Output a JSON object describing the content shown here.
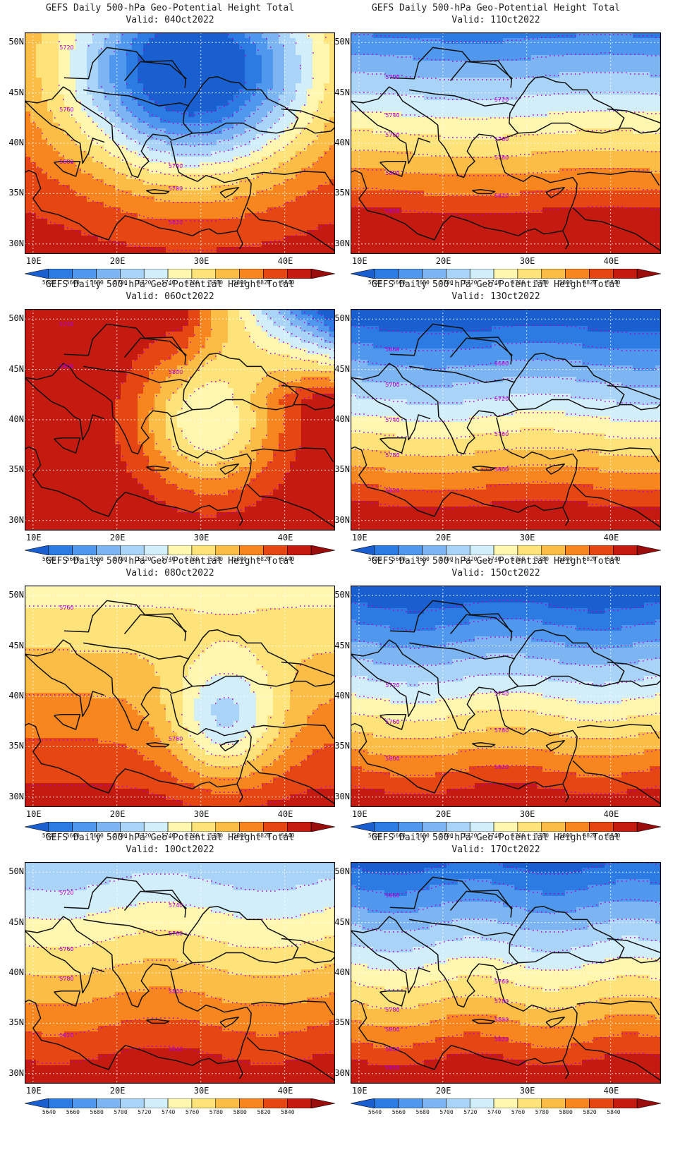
{
  "map_title": "GEFS Daily 500-hPa Geo-Potential Height Total",
  "x_ticks": [
    "10E",
    "20E",
    "30E",
    "40E"
  ],
  "y_ticks": [
    "50N",
    "45N",
    "40N",
    "35N",
    "30N"
  ],
  "colorbar": {
    "levels": [
      "5640",
      "5660",
      "5680",
      "5700",
      "5720",
      "5740",
      "5760",
      "5780",
      "5800",
      "5820",
      "5840"
    ],
    "colors": [
      "#1a5fd0",
      "#2b7be3",
      "#4f98ee",
      "#7db5f2",
      "#a9d3f7",
      "#d2eefb",
      "#fff7b0",
      "#fde37a",
      "#fbbd45",
      "#f7861f",
      "#e64612",
      "#c41a10",
      "#990d0d"
    ]
  },
  "contour_color": "#b000d0",
  "land_outline_color": "#111111",
  "panels": [
    {
      "valid": "Valid: 04Oct2022",
      "contour_labels": [
        "5720",
        "5740",
        "5760",
        "5780",
        "5800",
        "5820"
      ]
    },
    {
      "valid": "Valid: 11Oct2022",
      "contour_labels": [
        "5700",
        "5720",
        "5740",
        "5760",
        "5760",
        "5780",
        "5800",
        "5820",
        "5840"
      ]
    },
    {
      "valid": "Valid: 06Oct2022",
      "contour_labels": [
        "5740",
        "5800",
        "5800"
      ]
    },
    {
      "valid": "Valid: 13Oct2022",
      "contour_labels": [
        "5660",
        "5680",
        "5700",
        "5720",
        "5740",
        "5760",
        "5780",
        "5800",
        "5820"
      ]
    },
    {
      "valid": "Valid: 08Oct2022",
      "contour_labels": [
        "5760",
        "5780"
      ]
    },
    {
      "valid": "Valid: 15Oct2022",
      "contour_labels": [
        "5720",
        "5740",
        "5760",
        "5780",
        "5800",
        "5820"
      ]
    },
    {
      "valid": "Valid: 10Oct2022",
      "contour_labels": [
        "5720",
        "5740",
        "5760",
        "5760",
        "5780",
        "5800",
        "5820",
        "5840"
      ]
    },
    {
      "valid": "Valid: 17Oct2022",
      "contour_labels": [
        "5660",
        "5760",
        "5780",
        "5780",
        "5800",
        "5800",
        "5820",
        "5820",
        "5840"
      ]
    }
  ]
}
